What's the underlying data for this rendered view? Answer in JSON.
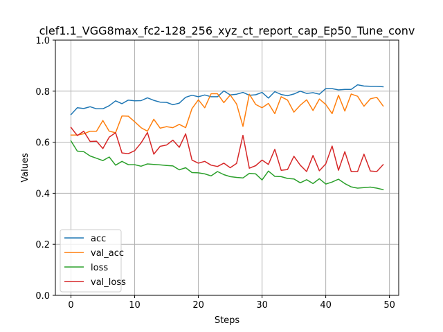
{
  "chart_data": {
    "type": "line",
    "title": "clef1.1_VGG8max_fc2-128_256_xyz_ct_report_cap_Ep50_Tune_conv",
    "xlabel": "Steps",
    "ylabel": "Values",
    "xlim": [
      -2.45,
      51.45
    ],
    "ylim": [
      0.0,
      1.0
    ],
    "xticks": [
      0,
      10,
      20,
      30,
      40,
      50
    ],
    "yticks": [
      0.0,
      0.2,
      0.4,
      0.6,
      0.8,
      1.0
    ],
    "xtick_labels": [
      "0",
      "10",
      "20",
      "30",
      "40",
      "50"
    ],
    "ytick_labels": [
      "0.0",
      "0.2",
      "0.4",
      "0.6",
      "0.8",
      "1.0"
    ],
    "grid": true,
    "legend_position": "lower-left",
    "x": [
      0,
      1,
      2,
      3,
      4,
      5,
      6,
      7,
      8,
      9,
      10,
      11,
      12,
      13,
      14,
      15,
      16,
      17,
      18,
      19,
      20,
      21,
      22,
      23,
      24,
      25,
      26,
      27,
      28,
      29,
      30,
      31,
      32,
      33,
      34,
      35,
      36,
      37,
      38,
      39,
      40,
      41,
      42,
      43,
      44,
      45,
      46,
      47,
      48,
      49
    ],
    "series": [
      {
        "name": "acc",
        "color": "#1f77b4",
        "values": [
          0.708,
          0.735,
          0.732,
          0.739,
          0.731,
          0.731,
          0.743,
          0.762,
          0.751,
          0.765,
          0.762,
          0.763,
          0.774,
          0.764,
          0.757,
          0.756,
          0.747,
          0.753,
          0.776,
          0.784,
          0.778,
          0.785,
          0.778,
          0.778,
          0.801,
          0.785,
          0.788,
          0.795,
          0.784,
          0.786,
          0.795,
          0.773,
          0.798,
          0.787,
          0.782,
          0.789,
          0.8,
          0.791,
          0.794,
          0.788,
          0.81,
          0.81,
          0.805,
          0.807,
          0.807,
          0.825,
          0.82,
          0.819,
          0.819,
          0.817
        ]
      },
      {
        "name": "val_acc",
        "color": "#ff7f0e",
        "values": [
          0.628,
          0.628,
          0.633,
          0.643,
          0.643,
          0.685,
          0.643,
          0.637,
          0.703,
          0.702,
          0.68,
          0.657,
          0.643,
          0.69,
          0.655,
          0.661,
          0.657,
          0.67,
          0.657,
          0.732,
          0.766,
          0.735,
          0.79,
          0.79,
          0.755,
          0.785,
          0.75,
          0.662,
          0.788,
          0.748,
          0.735,
          0.752,
          0.712,
          0.778,
          0.765,
          0.718,
          0.745,
          0.766,
          0.724,
          0.769,
          0.748,
          0.712,
          0.784,
          0.722,
          0.789,
          0.78,
          0.741,
          0.77,
          0.776,
          0.742
        ]
      },
      {
        "name": "loss",
        "color": "#2ca02c",
        "values": [
          0.605,
          0.565,
          0.563,
          0.546,
          0.537,
          0.528,
          0.542,
          0.51,
          0.525,
          0.512,
          0.512,
          0.506,
          0.515,
          0.513,
          0.511,
          0.509,
          0.507,
          0.492,
          0.5,
          0.481,
          0.48,
          0.476,
          0.468,
          0.485,
          0.473,
          0.465,
          0.462,
          0.46,
          0.478,
          0.476,
          0.452,
          0.487,
          0.466,
          0.465,
          0.458,
          0.456,
          0.441,
          0.453,
          0.438,
          0.457,
          0.436,
          0.444,
          0.455,
          0.438,
          0.425,
          0.42,
          0.422,
          0.424,
          0.42,
          0.414
        ]
      },
      {
        "name": "val_loss",
        "color": "#d62728",
        "values": [
          0.658,
          0.626,
          0.643,
          0.603,
          0.604,
          0.575,
          0.62,
          0.637,
          0.558,
          0.555,
          0.567,
          0.597,
          0.638,
          0.553,
          0.584,
          0.589,
          0.608,
          0.58,
          0.633,
          0.53,
          0.518,
          0.525,
          0.51,
          0.505,
          0.518,
          0.5,
          0.517,
          0.627,
          0.498,
          0.508,
          0.53,
          0.513,
          0.572,
          0.49,
          0.493,
          0.545,
          0.51,
          0.485,
          0.548,
          0.488,
          0.515,
          0.585,
          0.49,
          0.563,
          0.485,
          0.485,
          0.553,
          0.487,
          0.485,
          0.512
        ]
      }
    ]
  }
}
